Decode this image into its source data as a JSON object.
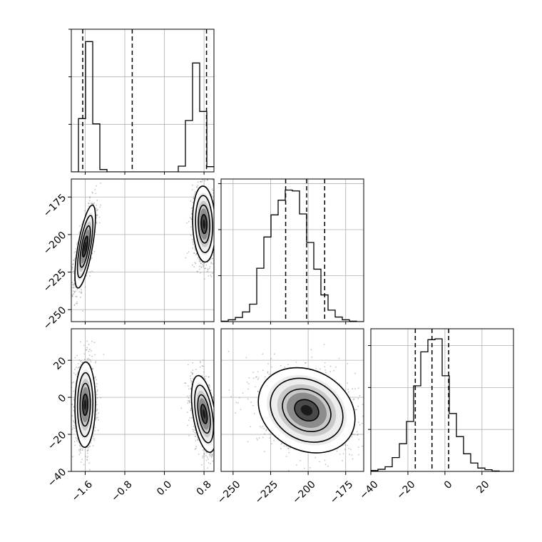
{
  "chart_data": {
    "type": "corner",
    "parameters": [
      {
        "ticks": [
          -1.6,
          -0.8,
          0.0,
          0.8
        ],
        "tick_labels": [
          "−1.6",
          "−0.8",
          "0.0",
          "0.8"
        ],
        "range": [
          -1.88,
          1.0
        ]
      },
      {
        "ticks": [
          -250,
          -225,
          -200,
          -175
        ],
        "tick_labels": [
          "−250",
          "−225",
          "−200",
          "−175"
        ],
        "range": [
          -258,
          -163
        ]
      },
      {
        "ticks": [
          -40,
          -20,
          0,
          20
        ],
        "tick_labels": [
          "−40",
          "−20",
          "0",
          "20"
        ],
        "range": [
          -40,
          37
        ]
      }
    ],
    "diagonal": [
      {
        "param": 0,
        "bin_edges": [
          -1.88,
          -1.736,
          -1.592,
          -1.448,
          -1.304,
          -1.16,
          -1.016,
          -0.872,
          -0.728,
          -0.584,
          -0.44,
          -0.296,
          -0.152,
          -0.008,
          0.136,
          0.28,
          0.424,
          0.568,
          0.712,
          0.856,
          1.0
        ],
        "counts": [
          0,
          1120,
          2740,
          1010,
          50,
          0,
          0,
          0,
          0,
          0,
          0,
          0,
          0,
          0,
          0,
          120,
          1080,
          2290,
          1270,
          110
        ],
        "quantiles": [
          -1.65,
          -0.65,
          0.85
        ],
        "ylim": [
          0,
          3000
        ]
      },
      {
        "param": 1,
        "bin_edges": [
          -258,
          -253.25,
          -248.5,
          -243.75,
          -239,
          -234.25,
          -229.5,
          -224.75,
          -220,
          -215.25,
          -210.5,
          -205.75,
          -201,
          -196.25,
          -191.5,
          -186.75,
          -182,
          -177.25,
          -172.5,
          -167.75,
          -163
        ],
        "counts": [
          10,
          40,
          90,
          210,
          380,
          1160,
          1840,
          2320,
          2640,
          2860,
          2840,
          2340,
          1720,
          1140,
          580,
          250,
          100,
          40,
          10,
          0
        ],
        "quantiles": [
          -215,
          -201,
          -189
        ],
        "ylim": [
          0,
          3100
        ]
      },
      {
        "param": 2,
        "bin_edges": [
          -40,
          -36.15,
          -32.3,
          -28.45,
          -24.6,
          -20.75,
          -16.9,
          -13.05,
          -9.2,
          -5.35,
          -1.5,
          2.35,
          6.2,
          10.05,
          13.9,
          17.75,
          21.6,
          25.45,
          29.3,
          33.15,
          37
        ],
        "counts": [
          20,
          50,
          110,
          330,
          660,
          1190,
          2040,
          2850,
          3140,
          3160,
          2280,
          1380,
          830,
          420,
          200,
          80,
          40,
          10,
          0,
          0
        ],
        "quantiles": [
          -16,
          -7,
          2
        ],
        "ylim": [
          0,
          3400
        ]
      }
    ],
    "off_diagonal": [
      {
        "xparam": 0,
        "yparam": 1,
        "clusters": [
          {
            "mean": [
              -1.6,
              -208
            ],
            "sd": [
              0.09,
              12
            ],
            "rho": 0.7
          },
          {
            "mean": [
              0.8,
              -193
            ],
            "sd": [
              0.1,
              11
            ],
            "rho": -0.1
          }
        ]
      },
      {
        "xparam": 0,
        "yparam": 2,
        "clusters": [
          {
            "mean": [
              -1.6,
              -4
            ],
            "sd": [
              0.09,
              10
            ],
            "rho": 0.05
          },
          {
            "mean": [
              0.8,
              -9
            ],
            "sd": [
              0.11,
              9
            ],
            "rho": -0.45
          }
        ]
      },
      {
        "xparam": 1,
        "yparam": 2,
        "clusters": [
          {
            "mean": [
              -201,
              -7
            ],
            "sd": [
              14,
              10
            ],
            "rho": -0.2
          }
        ]
      }
    ],
    "contour_levels_sigma": [
      0.5,
      1.0,
      1.5,
      2.0
    ],
    "grid": true,
    "title": "",
    "xlabel": "",
    "ylabel": ""
  }
}
